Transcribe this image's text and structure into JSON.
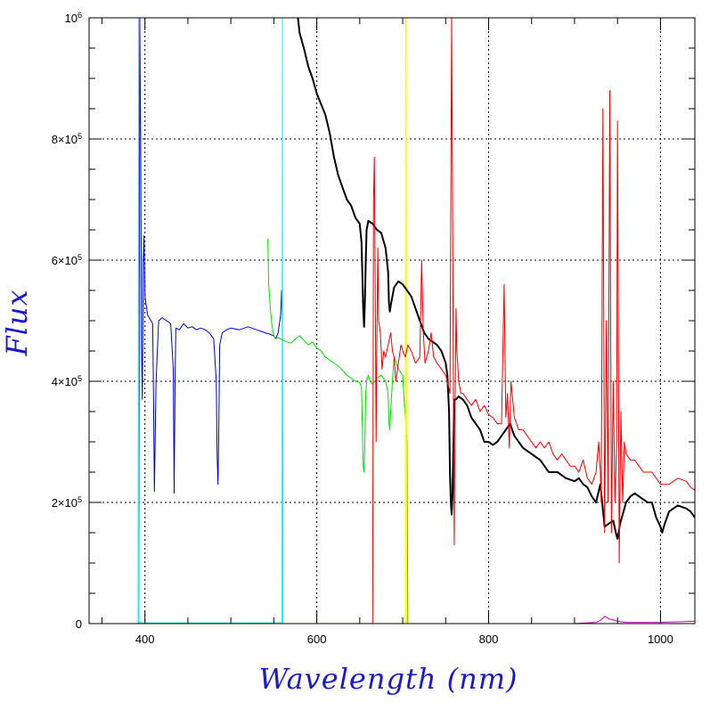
{
  "chart_data": {
    "type": "line",
    "title": "",
    "xlabel": "Wavelength (nm)",
    "ylabel": "Flux",
    "xlim": [
      335,
      1040
    ],
    "ylim": [
      0,
      1000000
    ],
    "grid": true,
    "x_ticks": [
      {
        "value": 400,
        "label": "400"
      },
      {
        "value": 600,
        "label": "600"
      },
      {
        "value": 800,
        "label": "800"
      },
      {
        "value": 1000,
        "label": "1000"
      }
    ],
    "y_ticks": [
      {
        "value": 0,
        "label": "0",
        "base": "0",
        "exp": ""
      },
      {
        "value": 200000,
        "label": "2×10^5",
        "base": "2×10",
        "exp": "5"
      },
      {
        "value": 400000,
        "label": "4×10^5",
        "base": "4×10",
        "exp": "5"
      },
      {
        "value": 600000,
        "label": "6×10^5",
        "base": "6×10",
        "exp": "5"
      },
      {
        "value": 800000,
        "label": "8×10^5",
        "base": "8×10",
        "exp": "5"
      },
      {
        "value": 1000000,
        "label": "10^6",
        "base": "10",
        "exp": "6"
      }
    ],
    "series": [
      {
        "color": "#0000cc",
        "stroke_width": 1,
        "x": [
          393,
          394,
          395,
          396,
          397,
          398,
          399,
          400,
          403,
          405,
          407,
          409,
          410,
          411,
          413,
          416,
          420,
          425,
          430,
          433,
          434,
          435,
          436,
          440,
          445,
          450,
          455,
          460,
          465,
          470,
          475,
          480,
          483,
          484,
          485,
          486,
          487,
          490,
          495,
          500,
          510,
          520,
          530,
          540,
          545,
          550,
          552,
          555,
          558,
          559,
          560,
          560.5
        ],
        "y": [
          0,
          1000000,
          800000,
          460000,
          370000,
          600000,
          640000,
          540000,
          510000,
          505000,
          500000,
          495000,
          380000,
          218000,
          400000,
          500000,
          505000,
          500000,
          495000,
          420000,
          215000,
          400000,
          488000,
          485000,
          495000,
          488000,
          490000,
          485000,
          488000,
          485000,
          480000,
          470000,
          400000,
          280000,
          230000,
          320000,
          460000,
          480000,
          485000,
          488000,
          485000,
          490000,
          485000,
          480000,
          478000,
          475000,
          470000,
          480000,
          510000,
          550000,
          500000,
          0
        ]
      },
      {
        "color": "#00ffff",
        "stroke_width": 1,
        "x": [
          392,
          392.5,
          393,
          398,
          450,
          500,
          555,
          559.5,
          560,
          560.5
        ],
        "y": [
          0,
          1000000,
          2000,
          1000,
          1000,
          1000,
          1000,
          1000,
          1000000,
          0
        ]
      },
      {
        "color": "#00dd00",
        "stroke_width": 1,
        "x": [
          543,
          544,
          546,
          548,
          550,
          552,
          555,
          558,
          560,
          565,
          570,
          575,
          580,
          585,
          590,
          595,
          600,
          605,
          610,
          615,
          620,
          625,
          630,
          635,
          640,
          645,
          650,
          652,
          653,
          654,
          655,
          656,
          657,
          658,
          660,
          662,
          665,
          670,
          675,
          680,
          683,
          684,
          685,
          686,
          688,
          690,
          695,
          700,
          702,
          704,
          705,
          706
        ],
        "y": [
          635000,
          560000,
          520000,
          490000,
          475000,
          470000,
          472000,
          470000,
          468000,
          465000,
          463000,
          470000,
          475000,
          468000,
          460000,
          465000,
          455000,
          450000,
          440000,
          435000,
          430000,
          425000,
          418000,
          410000,
          405000,
          400000,
          398000,
          390000,
          330000,
          260000,
          250000,
          300000,
          380000,
          400000,
          410000,
          400000,
          395000,
          405000,
          410000,
          400000,
          380000,
          330000,
          320000,
          350000,
          400000,
          440000,
          420000,
          410000,
          360000,
          320000,
          300000,
          0
        ]
      },
      {
        "color": "#ffff00",
        "stroke_width": 1.2,
        "x": [
          553,
          690,
          703,
          703.5,
          704,
          704.5
        ],
        "y": [
          0,
          0,
          0,
          1000000,
          1000000,
          0
        ]
      },
      {
        "color": "#000000",
        "stroke_width": 2,
        "x": [
          578,
          580,
          585,
          590,
          595,
          600,
          610,
          615,
          620,
          625,
          630,
          635,
          640,
          645,
          650,
          652,
          653,
          654,
          655,
          656,
          657,
          658,
          660,
          665,
          670,
          675,
          680,
          683,
          684,
          685,
          686,
          688,
          690,
          695,
          700,
          705,
          710,
          720,
          725,
          730,
          740,
          745,
          750,
          752,
          754,
          755,
          756,
          757,
          758,
          760,
          762,
          765,
          770,
          775,
          780,
          790,
          795,
          800,
          805,
          810,
          815,
          820,
          825,
          830,
          840,
          850,
          860,
          865,
          870,
          880,
          890,
          900,
          905,
          910,
          915,
          920,
          925,
          930,
          935,
          940,
          945,
          948,
          950,
          953,
          955,
          960,
          965,
          970,
          975,
          980,
          985,
          990,
          995,
          1000,
          1002,
          1005,
          1010,
          1020,
          1030,
          1035,
          1040
        ],
        "y": [
          1000000,
          975000,
          950000,
          920000,
          900000,
          875000,
          840000,
          810000,
          770000,
          740000,
          720000,
          700000,
          690000,
          670000,
          660000,
          630000,
          580000,
          520000,
          490000,
          530000,
          600000,
          650000,
          665000,
          660000,
          650000,
          645000,
          620000,
          580000,
          530000,
          515000,
          525000,
          540000,
          555000,
          565000,
          560000,
          550000,
          540000,
          500000,
          480000,
          470000,
          460000,
          450000,
          430000,
          410000,
          350000,
          250000,
          200000,
          180000,
          215000,
          370000,
          370000,
          375000,
          370000,
          360000,
          340000,
          320000,
          300000,
          300000,
          295000,
          300000,
          310000,
          320000,
          330000,
          310000,
          290000,
          280000,
          270000,
          260000,
          250000,
          250000,
          240000,
          235000,
          240000,
          230000,
          225000,
          210000,
          200000,
          230000,
          160000,
          165000,
          170000,
          150000,
          140000,
          165000,
          175000,
          200000,
          210000,
          215000,
          210000,
          205000,
          200000,
          200000,
          175000,
          160000,
          150000,
          165000,
          185000,
          195000,
          190000,
          185000,
          175000
        ]
      },
      {
        "color": "#ee0000",
        "stroke_width": 1,
        "x": [
          665,
          666,
          667,
          668,
          669,
          670,
          671,
          672,
          674,
          676,
          678,
          680,
          683,
          686,
          688,
          690,
          692,
          695,
          698,
          700,
          703,
          706,
          710,
          715,
          720,
          722,
          724,
          726,
          730,
          733,
          736,
          740,
          745,
          750,
          752,
          755,
          757,
          759,
          760,
          761,
          762,
          763,
          764,
          765,
          768,
          770,
          775,
          780,
          785,
          790,
          795,
          800,
          805,
          810,
          815,
          818,
          820,
          822,
          824,
          826,
          830,
          835,
          840,
          845,
          850,
          855,
          860,
          865,
          870,
          875,
          880,
          885,
          890,
          895,
          900,
          905,
          910,
          915,
          920,
          925,
          928,
          930,
          931,
          933,
          935,
          937,
          939,
          941,
          943,
          945,
          947,
          949,
          950,
          952,
          954,
          956,
          958,
          960,
          965,
          970,
          975,
          980,
          985,
          990,
          995,
          1000,
          1010,
          1020,
          1030,
          1035,
          1040
        ],
        "y": [
          0,
          700000,
          770000,
          560000,
          300000,
          480000,
          620000,
          500000,
          480000,
          420000,
          450000,
          440000,
          460000,
          480000,
          450000,
          440000,
          400000,
          430000,
          460000,
          450000,
          440000,
          460000,
          450000,
          430000,
          440000,
          600000,
          480000,
          430000,
          450000,
          480000,
          440000,
          430000,
          420000,
          410000,
          400000,
          380000,
          1000000,
          380000,
          130000,
          360000,
          520000,
          450000,
          430000,
          400000,
          380000,
          380000,
          370000,
          360000,
          370000,
          350000,
          360000,
          345000,
          340000,
          330000,
          330000,
          560000,
          340000,
          380000,
          290000,
          400000,
          340000,
          320000,
          320000,
          310000,
          300000,
          290000,
          300000,
          290000,
          300000,
          280000,
          270000,
          280000,
          270000,
          260000,
          260000,
          250000,
          270000,
          240000,
          230000,
          250000,
          300000,
          250000,
          200000,
          850000,
          150000,
          500000,
          200000,
          880000,
          150000,
          400000,
          200000,
          300000,
          830000,
          100000,
          350000,
          200000,
          300000,
          280000,
          270000,
          270000,
          260000,
          250000,
          250000,
          250000,
          240000,
          230000,
          230000,
          240000,
          235000,
          225000,
          220000
        ]
      },
      {
        "color": "#cc00cc",
        "stroke_width": 1,
        "x": [
          700,
          800,
          900,
          925,
          930,
          935,
          940,
          945,
          950,
          955,
          960,
          980,
          1000,
          1020,
          1040
        ],
        "y": [
          0,
          0,
          0,
          2000,
          5000,
          12000,
          8000,
          6000,
          4000,
          3000,
          2000,
          2000,
          2000,
          3000,
          4000
        ]
      }
    ]
  }
}
